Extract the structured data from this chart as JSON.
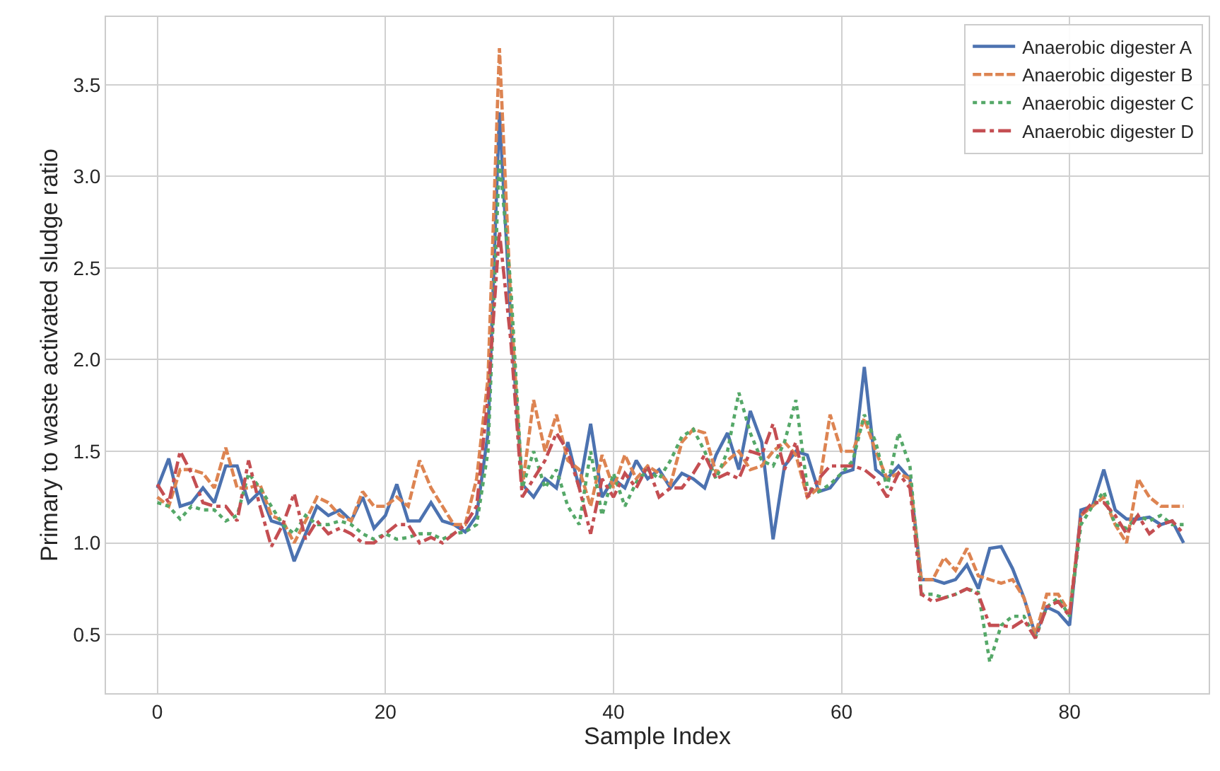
{
  "chart_data": {
    "type": "line",
    "xlabel": "Sample Index",
    "ylabel": "Primary to waste activated sludge ratio",
    "x": [
      0,
      1,
      2,
      3,
      4,
      5,
      6,
      7,
      8,
      9,
      10,
      11,
      12,
      13,
      14,
      15,
      16,
      17,
      18,
      19,
      20,
      21,
      22,
      23,
      24,
      25,
      26,
      27,
      28,
      29,
      30,
      31,
      32,
      33,
      34,
      35,
      36,
      37,
      38,
      39,
      40,
      41,
      42,
      43,
      44,
      45,
      46,
      47,
      48,
      49,
      50,
      51,
      52,
      53,
      54,
      55,
      56,
      57,
      58,
      59,
      60,
      61,
      62,
      63,
      64,
      65,
      66,
      67,
      68,
      69,
      70,
      71,
      72,
      73,
      74,
      75,
      76,
      77,
      78,
      79,
      80,
      81,
      82,
      83,
      84,
      85,
      86,
      87,
      88,
      89,
      90
    ],
    "series": [
      {
        "name": "Anaerobic digester A",
        "color": "#4c72b0",
        "line_style": "solid",
        "values": [
          1.3,
          1.46,
          1.2,
          1.22,
          1.3,
          1.22,
          1.42,
          1.42,
          1.22,
          1.28,
          1.12,
          1.1,
          0.9,
          1.05,
          1.2,
          1.15,
          1.18,
          1.12,
          1.25,
          1.08,
          1.15,
          1.32,
          1.12,
          1.12,
          1.22,
          1.12,
          1.1,
          1.06,
          1.15,
          1.6,
          3.35,
          2.2,
          1.32,
          1.25,
          1.35,
          1.3,
          1.55,
          1.3,
          1.65,
          1.25,
          1.35,
          1.3,
          1.45,
          1.35,
          1.4,
          1.3,
          1.38,
          1.35,
          1.3,
          1.48,
          1.6,
          1.4,
          1.72,
          1.55,
          1.02,
          1.42,
          1.5,
          1.48,
          1.28,
          1.3,
          1.38,
          1.4,
          1.96,
          1.4,
          1.35,
          1.42,
          1.35,
          0.8,
          0.8,
          0.78,
          0.8,
          0.88,
          0.75,
          0.97,
          0.98,
          0.86,
          0.7,
          0.5,
          0.65,
          0.62,
          0.55,
          1.18,
          1.2,
          1.4,
          1.18,
          1.13,
          1.13,
          1.14,
          1.1,
          1.12,
          1.0
        ]
      },
      {
        "name": "Anaerobic digester B",
        "color": "#dd8452",
        "line_style": "dashed",
        "values": [
          1.25,
          1.2,
          1.4,
          1.4,
          1.38,
          1.3,
          1.52,
          1.3,
          1.3,
          1.32,
          1.15,
          1.12,
          1.0,
          1.12,
          1.25,
          1.22,
          1.15,
          1.12,
          1.28,
          1.2,
          1.2,
          1.25,
          1.2,
          1.45,
          1.3,
          1.2,
          1.1,
          1.1,
          1.35,
          1.9,
          3.7,
          2.3,
          1.3,
          1.78,
          1.5,
          1.7,
          1.45,
          1.4,
          1.2,
          1.48,
          1.3,
          1.48,
          1.35,
          1.42,
          1.38,
          1.32,
          1.55,
          1.62,
          1.6,
          1.38,
          1.45,
          1.5,
          1.4,
          1.42,
          1.5,
          1.55,
          1.48,
          1.25,
          1.3,
          1.7,
          1.5,
          1.5,
          1.68,
          1.5,
          1.35,
          1.38,
          1.35,
          0.8,
          0.8,
          0.92,
          0.85,
          0.97,
          0.82,
          0.8,
          0.78,
          0.8,
          0.7,
          0.5,
          0.72,
          0.72,
          0.62,
          1.15,
          1.2,
          1.25,
          1.1,
          1.0,
          1.35,
          1.25,
          1.2,
          1.2,
          1.2
        ]
      },
      {
        "name": "Anaerobic digester C",
        "color": "#55a868",
        "line_style": "dotted",
        "values": [
          1.22,
          1.2,
          1.13,
          1.2,
          1.18,
          1.18,
          1.12,
          1.15,
          1.38,
          1.3,
          1.2,
          1.1,
          1.05,
          1.15,
          1.1,
          1.1,
          1.12,
          1.1,
          1.05,
          1.02,
          1.05,
          1.02,
          1.03,
          1.05,
          1.05,
          1.02,
          1.05,
          1.06,
          1.1,
          1.5,
          3.1,
          2.4,
          1.3,
          1.5,
          1.3,
          1.4,
          1.2,
          1.1,
          1.5,
          1.15,
          1.38,
          1.2,
          1.33,
          1.4,
          1.35,
          1.45,
          1.58,
          1.62,
          1.5,
          1.35,
          1.5,
          1.82,
          1.6,
          1.45,
          1.42,
          1.55,
          1.78,
          1.3,
          1.28,
          1.32,
          1.38,
          1.45,
          1.7,
          1.55,
          1.3,
          1.6,
          1.42,
          0.72,
          0.72,
          0.7,
          0.72,
          0.75,
          0.73,
          0.35,
          0.55,
          0.6,
          0.6,
          0.48,
          0.65,
          0.7,
          0.6,
          1.1,
          1.2,
          1.28,
          1.1,
          1.08,
          1.15,
          1.12,
          1.15,
          1.1,
          1.1
        ]
      },
      {
        "name": "Anaerobic digester D",
        "color": "#c44e52",
        "line_style": "dashdot",
        "values": [
          1.32,
          1.22,
          1.5,
          1.38,
          1.22,
          1.2,
          1.2,
          1.12,
          1.45,
          1.2,
          0.98,
          1.1,
          1.27,
          1.02,
          1.12,
          1.05,
          1.08,
          1.05,
          1.0,
          1.0,
          1.05,
          1.1,
          1.1,
          1.0,
          1.03,
          1.0,
          1.05,
          1.1,
          1.2,
          1.8,
          2.7,
          2.1,
          1.25,
          1.35,
          1.45,
          1.6,
          1.5,
          1.3,
          1.05,
          1.35,
          1.25,
          1.38,
          1.3,
          1.42,
          1.25,
          1.3,
          1.3,
          1.38,
          1.48,
          1.35,
          1.38,
          1.35,
          1.5,
          1.48,
          1.65,
          1.4,
          1.55,
          1.25,
          1.35,
          1.42,
          1.42,
          1.42,
          1.4,
          1.35,
          1.25,
          1.38,
          1.3,
          0.72,
          0.68,
          0.7,
          0.72,
          0.75,
          0.72,
          0.55,
          0.55,
          0.54,
          0.58,
          0.48,
          0.65,
          0.68,
          0.6,
          1.15,
          1.22,
          1.22,
          1.15,
          1.05,
          1.15,
          1.05,
          1.1,
          1.12,
          1.05
        ]
      }
    ],
    "xlim": [
      -4.5,
      92.2
    ],
    "xticks": [
      0,
      20,
      40,
      60,
      80
    ],
    "ylim": [
      0.18,
      3.87
    ],
    "yticks": [
      0.5,
      {
        "value": 1,
        "label": "1.0"
      },
      1.5,
      {
        "value": 2,
        "label": "2.0"
      },
      2.5,
      {
        "value": 3,
        "label": "3.0"
      },
      3.5
    ],
    "grid": true,
    "legend": "top right",
    "marker": "none"
  }
}
